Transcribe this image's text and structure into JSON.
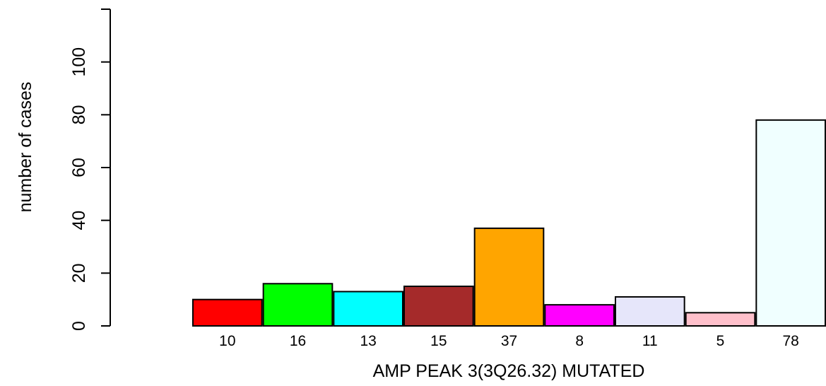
{
  "chart_data": {
    "type": "bar",
    "title": "",
    "xlabel": "AMP PEAK 3(3Q26.32) MUTATED",
    "ylabel": "number of cases",
    "ylim": [
      0,
      120
    ],
    "yticks": [
      0,
      20,
      40,
      60,
      80,
      100
    ],
    "values": [
      10,
      16,
      13,
      15,
      37,
      8,
      11,
      5,
      78
    ],
    "bar_labels": [
      "10",
      "16",
      "13",
      "15",
      "37",
      "8",
      "11",
      "5",
      "78"
    ],
    "colors": [
      "#ff0000",
      "#00ff00",
      "#00ffff",
      "#a52a2a",
      "#ffa500",
      "#ff00ff",
      "#e6e6fa",
      "#ffc0cb",
      "#f0ffff"
    ],
    "grid": false,
    "legend": "none"
  }
}
